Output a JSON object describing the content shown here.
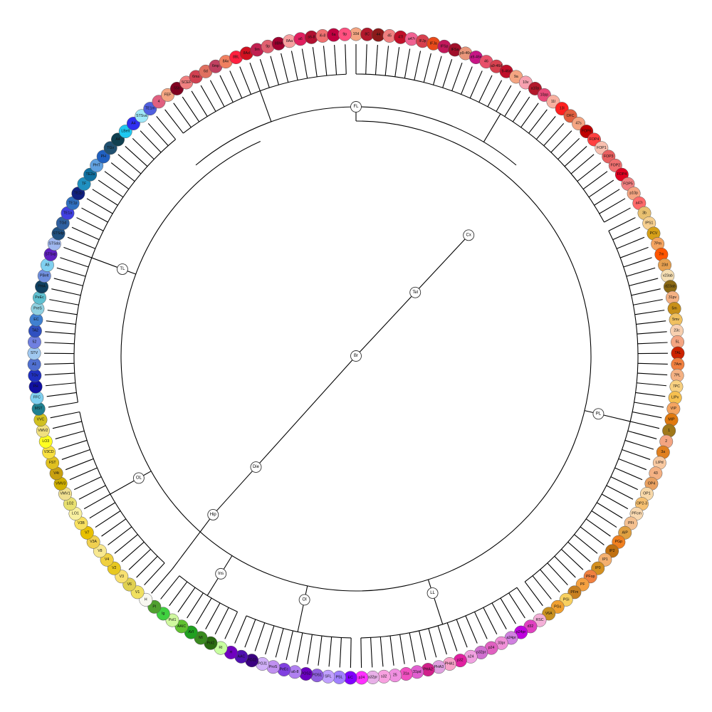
{
  "root": {
    "id": "Br",
    "label": "Br"
  },
  "groups": [
    {
      "id": "Cx",
      "label": "Cx",
      "parent": "Tel"
    },
    {
      "id": "Tel",
      "label": "Tel",
      "parent": "Br"
    },
    {
      "id": "Die",
      "label": "Die",
      "parent": "Br"
    },
    {
      "id": "Hip",
      "label": "Hip",
      "parent": "Die"
    },
    {
      "id": "FL",
      "label": "FL",
      "parent": "Cx"
    },
    {
      "id": "PL",
      "label": "PL",
      "parent": "Cx"
    },
    {
      "id": "LL",
      "label": "LL",
      "parent": "Cx"
    },
    {
      "id": "OI",
      "label": "OI",
      "parent": "Cx"
    },
    {
      "id": "Ins",
      "label": "Ins",
      "parent": "Cx"
    },
    {
      "id": "OL",
      "label": "OL",
      "parent": "Cx"
    },
    {
      "id": "TL",
      "label": "TL",
      "parent": "Cx"
    }
  ],
  "leaves": [
    {
      "label": "10d",
      "color": "#f4a582",
      "group": "FL"
    },
    {
      "label": "8C",
      "color": "#b2182b",
      "group": "FL"
    },
    {
      "label": "44",
      "color": "#8b1a1a",
      "group": "FL"
    },
    {
      "label": "45",
      "color": "#f08080",
      "group": "FL"
    },
    {
      "label": "47l",
      "color": "#c0102a",
      "group": "FL"
    },
    {
      "label": "a47r",
      "color": "#f06292",
      "group": "FL"
    },
    {
      "label": "IFJp",
      "color": "#d6404e",
      "group": "FL"
    },
    {
      "label": "IFJa",
      "color": "#e84a1a",
      "group": "FL"
    },
    {
      "label": "IFSp",
      "color": "#c2185b",
      "group": "FL"
    },
    {
      "label": "IFSa",
      "color": "#a0102a",
      "group": "FL"
    },
    {
      "label": "p9-46v",
      "color": "#e9967a",
      "group": "FL"
    },
    {
      "label": "a9-46v",
      "color": "#c71585",
      "group": "FL"
    },
    {
      "label": "46",
      "color": "#e8506a",
      "group": "FL"
    },
    {
      "label": "a9-46d",
      "color": "#d6404e",
      "group": "FL"
    },
    {
      "label": "9-46d",
      "color": "#c0102a",
      "group": "FL"
    },
    {
      "label": "9a",
      "color": "#f4a582",
      "group": "FL"
    },
    {
      "label": "10v",
      "color": "#f7a1b0",
      "group": "FL"
    },
    {
      "label": "a10p",
      "color": "#b2182b",
      "group": "FL"
    },
    {
      "label": "10pp",
      "color": "#e84a7a",
      "group": "FL"
    },
    {
      "label": "11l",
      "color": "#f8b0a0",
      "group": "FL"
    },
    {
      "label": "13l",
      "color": "#ff2020",
      "group": "FL"
    },
    {
      "label": "OFC",
      "color": "#e06040",
      "group": "FL"
    },
    {
      "label": "47s",
      "color": "#f4a582",
      "group": "FL"
    },
    {
      "label": "FOP6",
      "color": "#c00000",
      "group": "FL"
    },
    {
      "label": "FOP4",
      "color": "#ff4040",
      "group": "FL"
    },
    {
      "label": "FOP1",
      "color": "#f8c0b0",
      "group": "FL"
    },
    {
      "label": "FOP3",
      "color": "#e86060",
      "group": "FL"
    },
    {
      "label": "FOP2",
      "color": "#f07070",
      "group": "FL"
    },
    {
      "label": "FOP4",
      "color": "#e00020",
      "group": "FL"
    },
    {
      "label": "FOP5",
      "color": "#f08080",
      "group": "FL"
    },
    {
      "label": "p10p",
      "color": "#f4a582",
      "group": "FL"
    },
    {
      "label": "a47r",
      "color": "#ff6a6a",
      "group": "FL"
    },
    {
      "label": "3b",
      "color": "#e8c070",
      "group": "PL"
    },
    {
      "label": "IPS1",
      "color": "#f6cf8f",
      "group": "PL"
    },
    {
      "label": "PCV",
      "color": "#d6a017",
      "group": "PL"
    },
    {
      "label": "7Pm",
      "color": "#f4a460",
      "group": "PL"
    },
    {
      "label": "7m",
      "color": "#ff5500",
      "group": "PL"
    },
    {
      "label": "23d",
      "color": "#e6a050",
      "group": "PL"
    },
    {
      "label": "v23ab",
      "color": "#f5deb3",
      "group": "PL"
    },
    {
      "label": "d23ab",
      "color": "#8b6914",
      "group": "PL"
    },
    {
      "label": "31pv",
      "color": "#f4b183",
      "group": "PL"
    },
    {
      "label": "5m",
      "color": "#c8901a",
      "group": "PL"
    },
    {
      "label": "5mv",
      "color": "#f0c060",
      "group": "PL"
    },
    {
      "label": "23c",
      "color": "#f8d0b0",
      "group": "PL"
    },
    {
      "label": "5L",
      "color": "#f4a582",
      "group": "PL"
    },
    {
      "label": "7AL",
      "color": "#cc2200",
      "group": "PL"
    },
    {
      "label": "7Am",
      "color": "#f08040",
      "group": "PL"
    },
    {
      "label": "7PL",
      "color": "#f4b183",
      "group": "PL"
    },
    {
      "label": "7PC",
      "color": "#f8d080",
      "group": "PL"
    },
    {
      "label": "LIPv",
      "color": "#f6c050",
      "group": "PL"
    },
    {
      "label": "VIP",
      "color": "#f4a460",
      "group": "PL"
    },
    {
      "label": "MIP",
      "color": "#e07a10",
      "group": "PL"
    },
    {
      "label": "1",
      "color": "#a0781a",
      "group": "PL"
    },
    {
      "label": "2",
      "color": "#f4a582",
      "group": "PL"
    },
    {
      "label": "3a",
      "color": "#e08020",
      "group": "PL"
    },
    {
      "label": "LIPd",
      "color": "#f8c8a0",
      "group": "PL"
    },
    {
      "label": "43",
      "color": "#f4b183",
      "group": "PL"
    },
    {
      "label": "OP4",
      "color": "#e8a060",
      "group": "PL"
    },
    {
      "label": "OP1",
      "color": "#f8d8a8",
      "group": "PL"
    },
    {
      "label": "OP2-3",
      "color": "#f6c070",
      "group": "PL"
    },
    {
      "label": "PFcm",
      "color": "#f8d8b0",
      "group": "PL"
    },
    {
      "label": "PFt",
      "color": "#f4c090",
      "group": "PL"
    },
    {
      "label": "AIP",
      "color": "#e0a040",
      "group": "PL"
    },
    {
      "label": "PGp",
      "color": "#f08020",
      "group": "PL"
    },
    {
      "label": "IP2",
      "color": "#c07010",
      "group": "PL"
    },
    {
      "label": "IP1",
      "color": "#f4b070",
      "group": "PL"
    },
    {
      "label": "IP0",
      "color": "#d49020",
      "group": "PL"
    },
    {
      "label": "PFop",
      "color": "#f08040",
      "group": "PL"
    },
    {
      "label": "PF",
      "color": "#f4a040",
      "group": "PL"
    },
    {
      "label": "PFm",
      "color": "#c88020",
      "group": "PL"
    },
    {
      "label": "PGi",
      "color": "#f8d060",
      "group": "PL"
    },
    {
      "label": "PGs",
      "color": "#f0a030",
      "group": "PL"
    },
    {
      "label": "V6A",
      "color": "#c89020",
      "group": "PL"
    },
    {
      "label": "RSC",
      "color": "#f4b0d8",
      "group": "LL"
    },
    {
      "label": "d32",
      "color": "#e040c0",
      "group": "LL"
    },
    {
      "label": "p24pr",
      "color": "#c000e0",
      "group": "LL"
    },
    {
      "label": "a24pr",
      "color": "#d080e0",
      "group": "LL"
    },
    {
      "label": "33pr",
      "color": "#f090d8",
      "group": "LL"
    },
    {
      "label": "p24",
      "color": "#e060c0",
      "group": "LL"
    },
    {
      "label": "p32pr",
      "color": "#d070d0",
      "group": "LL"
    },
    {
      "label": "a24",
      "color": "#f0a0e0",
      "group": "LL"
    },
    {
      "label": "p32",
      "color": "#e020a0",
      "group": "LL"
    },
    {
      "label": "PHA1",
      "color": "#f8a0c8",
      "group": "LL"
    },
    {
      "label": "PHA3",
      "color": "#e0a0e0",
      "group": "LL"
    },
    {
      "label": "PHA2",
      "color": "#d0208a",
      "group": "LL"
    },
    {
      "label": "31pd",
      "color": "#e060d0",
      "group": "LL"
    },
    {
      "label": "31a",
      "color": "#f050c0",
      "group": "LL"
    },
    {
      "label": "25",
      "color": "#f090e0",
      "group": "LL"
    },
    {
      "label": "s32",
      "color": "#f8a0e0",
      "group": "LL"
    },
    {
      "label": "a32pr",
      "color": "#e8b0e8",
      "group": "LL"
    },
    {
      "label": "p24",
      "color": "#ff30ff",
      "group": "LL"
    },
    {
      "label": "EC",
      "color": "#8000ff",
      "group": "OI"
    },
    {
      "label": "PSL",
      "color": "#a080ff",
      "group": "OI"
    },
    {
      "label": "SFL",
      "color": "#c0a0ff",
      "group": "OI"
    },
    {
      "label": "POS1",
      "color": "#9060e0",
      "group": "OI"
    },
    {
      "label": "POS2",
      "color": "#6a00c0",
      "group": "OI"
    },
    {
      "label": "a6-8",
      "color": "#b080f0",
      "group": "OI"
    },
    {
      "label": "PeEc",
      "color": "#8040e0",
      "group": "OI"
    },
    {
      "label": "ProS",
      "color": "#c090f0",
      "group": "OI"
    },
    {
      "label": "POJ1",
      "color": "#d0b0f8",
      "group": "OI"
    },
    {
      "label": "POJ2",
      "color": "#3a0080",
      "group": "OI"
    },
    {
      "label": "AAC",
      "color": "#5010b0",
      "group": "OI"
    },
    {
      "label": "H",
      "color": "#7000c0",
      "group": "OI"
    },
    {
      "label": "RI",
      "color": "#c8ffa0",
      "group": "Ins"
    },
    {
      "label": "PoI2",
      "color": "#2a6a10",
      "group": "Ins"
    },
    {
      "label": "MI",
      "color": "#3a8a20",
      "group": "Ins"
    },
    {
      "label": "AVI",
      "color": "#20a020",
      "group": "Ins"
    },
    {
      "label": "AAIC",
      "color": "#60c030",
      "group": "Ins"
    },
    {
      "label": "PoI1",
      "color": "#d0f8a0",
      "group": "Ins"
    },
    {
      "label": "Ig",
      "color": "#40d040",
      "group": "Ins"
    },
    {
      "label": "PI",
      "color": "#50a030",
      "group": "Ins"
    },
    {
      "label": "H",
      "color": "#f8f8f0",
      "group": "Hip"
    },
    {
      "label": "V1",
      "color": "#f0e060",
      "group": "OL"
    },
    {
      "label": "V6",
      "color": "#e0d050",
      "group": "OL"
    },
    {
      "label": "V3",
      "color": "#f8e070",
      "group": "OL"
    },
    {
      "label": "V2",
      "color": "#e8c820",
      "group": "OL"
    },
    {
      "label": "V4",
      "color": "#f0d040",
      "group": "OL"
    },
    {
      "label": "V8",
      "color": "#f8e890",
      "group": "OL"
    },
    {
      "label": "V3A",
      "color": "#f0d050",
      "group": "OL"
    },
    {
      "label": "V7",
      "color": "#e8c000",
      "group": "OL"
    },
    {
      "label": "V3B",
      "color": "#f8e060",
      "group": "OL"
    },
    {
      "label": "LO1",
      "color": "#f8f0a0",
      "group": "OL"
    },
    {
      "label": "LO2",
      "color": "#e8e070",
      "group": "OL"
    },
    {
      "label": "VMV1",
      "color": "#f0e090",
      "group": "OL"
    },
    {
      "label": "VMV3",
      "color": "#d0b000",
      "group": "OL"
    },
    {
      "label": "V4t",
      "color": "#c8a010",
      "group": "OL"
    },
    {
      "label": "FST",
      "color": "#e0c020",
      "group": "OL"
    },
    {
      "label": "V3CD",
      "color": "#f8e040",
      "group": "OL"
    },
    {
      "label": "LO3",
      "color": "#ffff20",
      "group": "OL"
    },
    {
      "label": "VMV2",
      "color": "#f0e080",
      "group": "OL"
    },
    {
      "label": "VVC",
      "color": "#d0c020",
      "group": "OL"
    },
    {
      "label": "MST",
      "color": "#208090",
      "group": "TL"
    },
    {
      "label": "FFC",
      "color": "#80d0f0",
      "group": "TL"
    },
    {
      "label": "PH",
      "color": "#1010a0",
      "group": "TL"
    },
    {
      "label": "TGv",
      "color": "#2030c0",
      "group": "TL"
    },
    {
      "label": "A1",
      "color": "#5070d0",
      "group": "TL"
    },
    {
      "label": "STV",
      "color": "#a0c8f0",
      "group": "TL"
    },
    {
      "label": "52",
      "color": "#7080e0",
      "group": "TL"
    },
    {
      "label": "TA2",
      "color": "#3050c0",
      "group": "TL"
    },
    {
      "label": "EC",
      "color": "#4080d0",
      "group": "TL"
    },
    {
      "label": "PreS",
      "color": "#90d0e0",
      "group": "TL"
    },
    {
      "label": "PeEc",
      "color": "#60c0d0",
      "group": "TL"
    },
    {
      "label": "PHA",
      "color": "#104060",
      "group": "TL"
    },
    {
      "label": "PBelt",
      "color": "#7090e0",
      "group": "TL"
    },
    {
      "label": "A5",
      "color": "#80d0f0",
      "group": "TL"
    },
    {
      "label": "STSvp",
      "color": "#6020c0",
      "group": "TL"
    },
    {
      "label": "STSda",
      "color": "#a0b8f0",
      "group": "TL"
    },
    {
      "label": "STSdp",
      "color": "#205080",
      "group": "TL"
    },
    {
      "label": "TGd",
      "color": "#3060a0",
      "group": "TL"
    },
    {
      "label": "TE1a",
      "color": "#4040e0",
      "group": "TL"
    },
    {
      "label": "TE1p",
      "color": "#3070c0",
      "group": "TL"
    },
    {
      "label": "TE2p",
      "color": "#102080",
      "group": "TL"
    },
    {
      "label": "TF",
      "color": "#2090c0",
      "group": "TL"
    },
    {
      "label": "TE2a",
      "color": "#1070a0",
      "group": "TL"
    },
    {
      "label": "PHT",
      "color": "#60a0e0",
      "group": "TL"
    },
    {
      "label": "PH",
      "color": "#2060c0",
      "group": "TL"
    },
    {
      "label": "TGv",
      "color": "#205070",
      "group": "TL"
    },
    {
      "label": "A4",
      "color": "#104050",
      "group": "TL"
    },
    {
      "label": "LBelt",
      "color": "#20c8f0",
      "group": "TL"
    },
    {
      "label": "A4",
      "color": "#3030f0",
      "group": "TL"
    },
    {
      "label": "STSva",
      "color": "#a0e8f8",
      "group": "TL"
    },
    {
      "label": "TE1m",
      "color": "#5060e0",
      "group": "TL"
    },
    {
      "label": "4",
      "color": "#e06080",
      "group": "FL"
    },
    {
      "label": "FEF",
      "color": "#f4a582",
      "group": "FL"
    },
    {
      "label": "55b",
      "color": "#800020",
      "group": "FL"
    },
    {
      "label": "SCEF",
      "color": "#f08080",
      "group": "FL"
    },
    {
      "label": "6ma",
      "color": "#d04050",
      "group": "FL"
    },
    {
      "label": "6d",
      "color": "#e07060",
      "group": "FL"
    },
    {
      "label": "6mp",
      "color": "#c04060",
      "group": "FL"
    },
    {
      "label": "8Av",
      "color": "#f08060",
      "group": "FL"
    },
    {
      "label": "8BL",
      "color": "#ff2040",
      "group": "FL"
    },
    {
      "label": "8Ad",
      "color": "#d01020",
      "group": "FL"
    },
    {
      "label": "9m",
      "color": "#c02050",
      "group": "FL"
    },
    {
      "label": "9p",
      "color": "#e06070",
      "group": "FL"
    },
    {
      "label": "8BM",
      "color": "#a00030",
      "group": "FL"
    },
    {
      "label": "8Aa",
      "color": "#f8a0a0",
      "group": "FL"
    },
    {
      "label": "a6",
      "color": "#e02060",
      "group": "FL"
    },
    {
      "label": "s6-8",
      "color": "#b01030",
      "group": "FL"
    },
    {
      "label": "i6-8",
      "color": "#f07070",
      "group": "FL"
    },
    {
      "label": "6a",
      "color": "#c00040",
      "group": "FL"
    },
    {
      "label": "9p",
      "color": "#ff5080",
      "group": "FL"
    }
  ]
}
